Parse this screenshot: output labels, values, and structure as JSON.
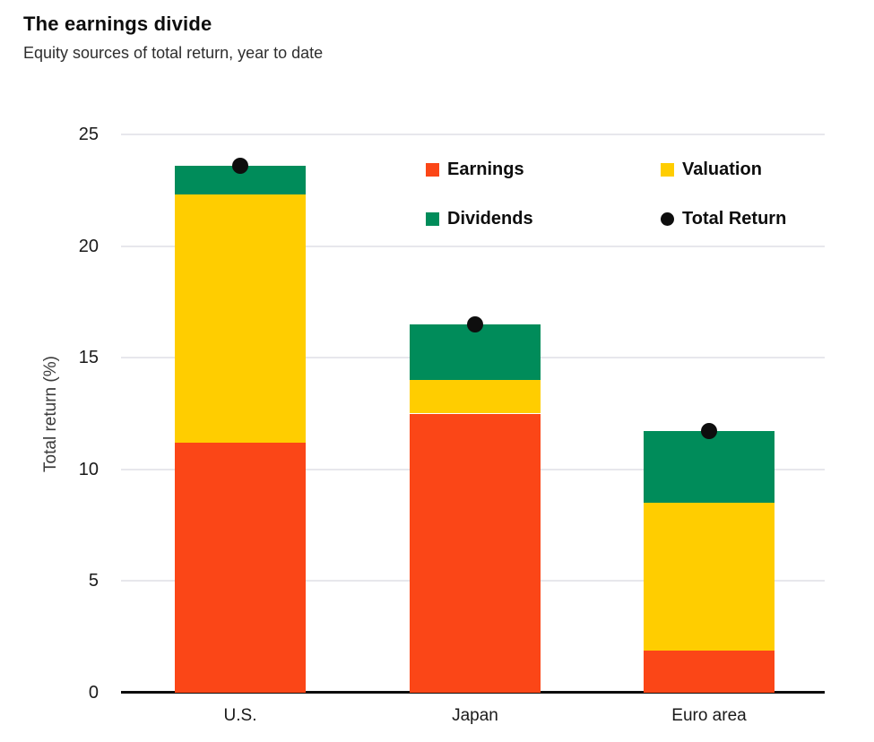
{
  "header": {
    "title": "The earnings divide",
    "subtitle": "Equity sources of total return, year to date"
  },
  "chart_data": {
    "type": "bar",
    "stacked": true,
    "title": "The earnings divide",
    "subtitle": "Equity sources of total return, year to date",
    "categories": [
      "U.S.",
      "Japan",
      "Euro area"
    ],
    "series": [
      {
        "name": "Earnings",
        "color": "#fb4617",
        "values": [
          11.2,
          12.5,
          1.9
        ]
      },
      {
        "name": "Valuation",
        "color": "#ffcd00",
        "values": [
          11.1,
          1.5,
          6.6
        ]
      },
      {
        "name": "Dividends",
        "color": "#008c5a",
        "values": [
          1.3,
          2.5,
          3.2
        ]
      }
    ],
    "dot_series": {
      "name": "Total Return",
      "color": "#0e0e0e",
      "values": [
        23.6,
        16.5,
        11.7
      ]
    },
    "xlabel": "",
    "ylabel": "Total return (%)",
    "yticks": [
      0,
      5,
      10,
      15,
      20,
      25
    ],
    "ylim": [
      0,
      25.4
    ],
    "grid": true,
    "legend_position": "top-right-inside",
    "legend": {
      "items": [
        {
          "label": "Earnings",
          "marker": "square",
          "color": "#fb4617"
        },
        {
          "label": "Valuation",
          "marker": "square",
          "color": "#ffcd00"
        },
        {
          "label": "Dividends",
          "marker": "square",
          "color": "#008c5a"
        },
        {
          "label": "Total Return",
          "marker": "circle",
          "color": "#0e0e0e"
        }
      ]
    },
    "colors": {
      "gridline": "#e7e7ec",
      "axis": "#0d0d0d",
      "tick_text": "#1a1a1a"
    }
  }
}
